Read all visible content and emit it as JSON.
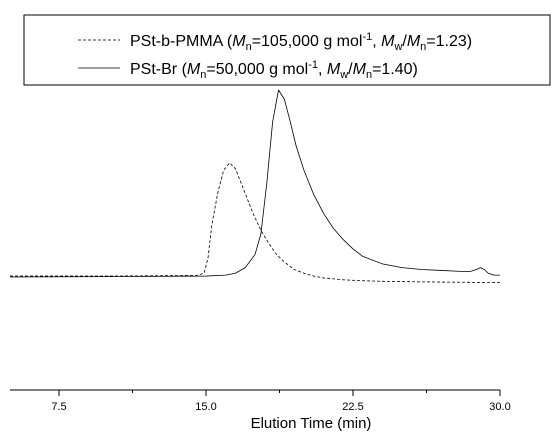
{
  "chart_data": {
    "type": "line",
    "title": "",
    "xlabel": "Elution Time (min)",
    "ylabel": "",
    "xlim": [
      5.0,
      30.0
    ],
    "x_ticks": [
      7.5,
      15.0,
      22.5,
      30.0
    ],
    "x_tick_labels": [
      "7.5",
      "15.0",
      "22.5",
      "30.0"
    ],
    "ylim": [
      -1.0,
      1.0
    ],
    "grid": false,
    "legend_position": "top",
    "series": [
      {
        "name": "PSt-b-PMMA (Mn=105,000 g mol-1, Mw/Mn=1.23)",
        "line_style": "dashed",
        "color": "#000000",
        "x": [
          5.0,
          10.0,
          14.5,
          14.9,
          15.1,
          15.3,
          15.6,
          15.9,
          16.2,
          16.5,
          16.8,
          17.1,
          17.4,
          17.8,
          18.2,
          18.6,
          19.0,
          19.5,
          20.0,
          20.5,
          21.0,
          22.0,
          23.0,
          24.0,
          26.0,
          28.0,
          30.0
        ],
        "y": [
          0.005,
          0.005,
          0.008,
          0.02,
          0.1,
          0.28,
          0.45,
          0.57,
          0.61,
          0.58,
          0.5,
          0.42,
          0.34,
          0.25,
          0.18,
          0.12,
          0.08,
          0.04,
          0.02,
          0.005,
          -0.005,
          -0.015,
          -0.02,
          -0.023,
          -0.026,
          -0.028,
          -0.03
        ]
      },
      {
        "name": "PSt-Br (Mn=50,000 g mol-1, Mw/Mn=1.40)",
        "line_style": "solid",
        "color": "#000000",
        "x": [
          5.0,
          10.0,
          15.0,
          16.0,
          16.5,
          17.0,
          17.5,
          17.8,
          18.1,
          18.4,
          18.7,
          19.0,
          19.3,
          19.6,
          20.0,
          20.5,
          21.0,
          21.5,
          22.0,
          22.5,
          23.0,
          24.0,
          25.0,
          26.0,
          27.0,
          28.0,
          28.5,
          28.8,
          29.0,
          29.2,
          29.4,
          29.7,
          30.0
        ],
        "y": [
          0.0,
          0.002,
          0.005,
          0.01,
          0.02,
          0.05,
          0.12,
          0.23,
          0.5,
          0.83,
          1.0,
          0.95,
          0.83,
          0.7,
          0.57,
          0.44,
          0.34,
          0.26,
          0.2,
          0.15,
          0.11,
          0.07,
          0.05,
          0.04,
          0.035,
          0.03,
          0.03,
          0.04,
          0.05,
          0.04,
          0.02,
          0.01,
          0.01
        ]
      }
    ]
  },
  "legend": {
    "entries": [
      {
        "label_prefix": "PSt-b-PMMA (",
        "mn_italic": "M",
        "mn_sub": "n",
        "mn_value": "=105,000 g mol",
        "mn_sup": "-1",
        "sep": ", ",
        "mw_italic": "M",
        "mw_sub": "w",
        "slash": "/",
        "mn2_italic": "M",
        "mn2_sub": "n",
        "pdi": "=1.23)"
      },
      {
        "label_prefix": "PSt-Br (",
        "mn_italic": "M",
        "mn_sub": "n",
        "mn_value": "=50,000 g mol",
        "mn_sup": "-1",
        "sep": ", ",
        "mw_italic": "M",
        "mw_sub": "w",
        "slash": "/",
        "mn2_italic": "M",
        "mn2_sub": "n",
        "pdi": "=1.40)"
      }
    ]
  }
}
